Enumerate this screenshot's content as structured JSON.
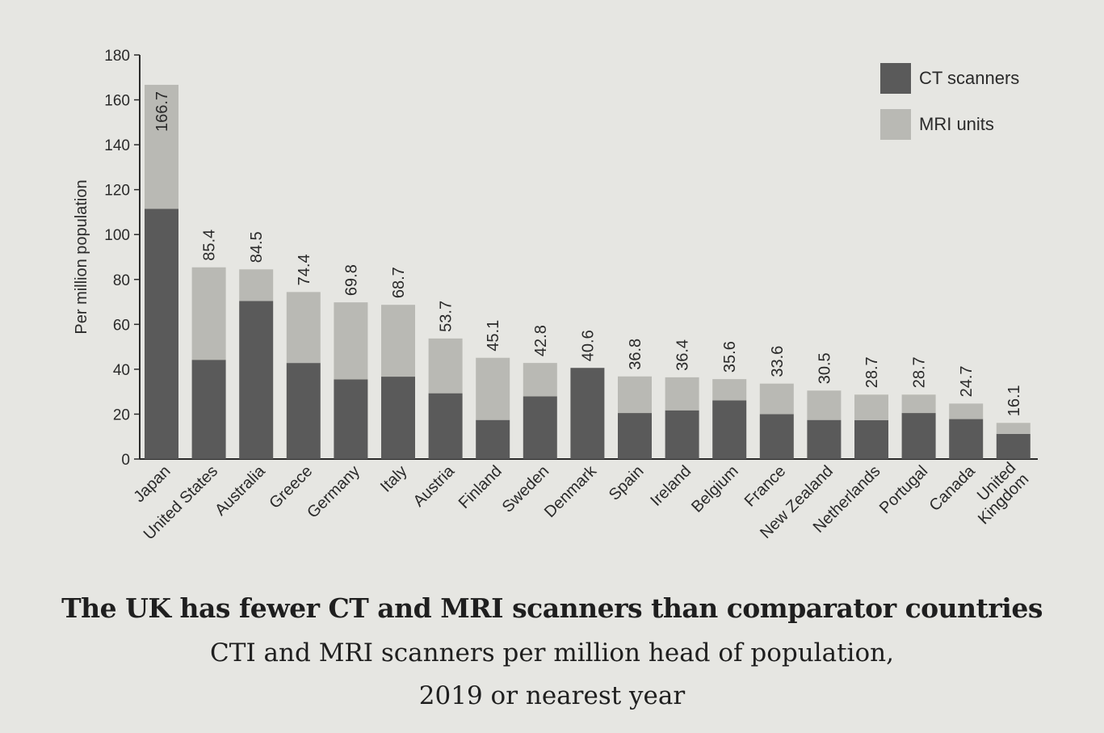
{
  "chart_data": {
    "type": "bar",
    "stacked": true,
    "categories": [
      "Japan",
      "United States",
      "Australia",
      "Greece",
      "Germany",
      "Italy",
      "Austria",
      "Finland",
      "Sweden",
      "Denmark",
      "Spain",
      "Ireland",
      "Belgium",
      "France",
      "New Zealand",
      "Netherlands",
      "Portugal",
      "Canada",
      "United Kingdom"
    ],
    "series": [
      {
        "name": "CT scanners",
        "color": "#5a5a5a",
        "values": [
          111.5,
          44.2,
          70.4,
          42.8,
          35.5,
          36.7,
          29.3,
          17.4,
          27.9,
          40.6,
          20.5,
          21.7,
          26.1,
          20.0,
          17.4,
          17.3,
          20.5,
          17.8,
          11.2
        ]
      },
      {
        "name": "MRI units",
        "color": "#b9b9b4",
        "values": [
          55.2,
          41.2,
          14.1,
          31.6,
          34.3,
          32.0,
          24.4,
          27.7,
          14.9,
          0.0,
          16.3,
          14.7,
          9.5,
          13.6,
          13.1,
          11.4,
          8.2,
          6.9,
          4.9
        ]
      }
    ],
    "totals": [
      "166.7",
      "85.4",
      "84.5",
      "74.4",
      "69.8",
      "68.7",
      "53.7",
      "45.1",
      "42.8",
      "40.6",
      "36.8",
      "36.4",
      "35.6",
      "33.6",
      "30.5",
      "28.7",
      "28.7",
      "24.7",
      "16.1"
    ],
    "ylabel": "Per million population",
    "ylim": [
      0,
      180
    ],
    "yticks": [
      0,
      20,
      40,
      60,
      80,
      100,
      120,
      140,
      160,
      180
    ],
    "legend": "top-right",
    "grid": false
  },
  "caption": {
    "title": "The UK has fewer CT and MRI scanners than comparator countries",
    "subtitle_line1": "CTI and MRI scanners per million head of population,",
    "subtitle_line2": "2019 or nearest year"
  }
}
